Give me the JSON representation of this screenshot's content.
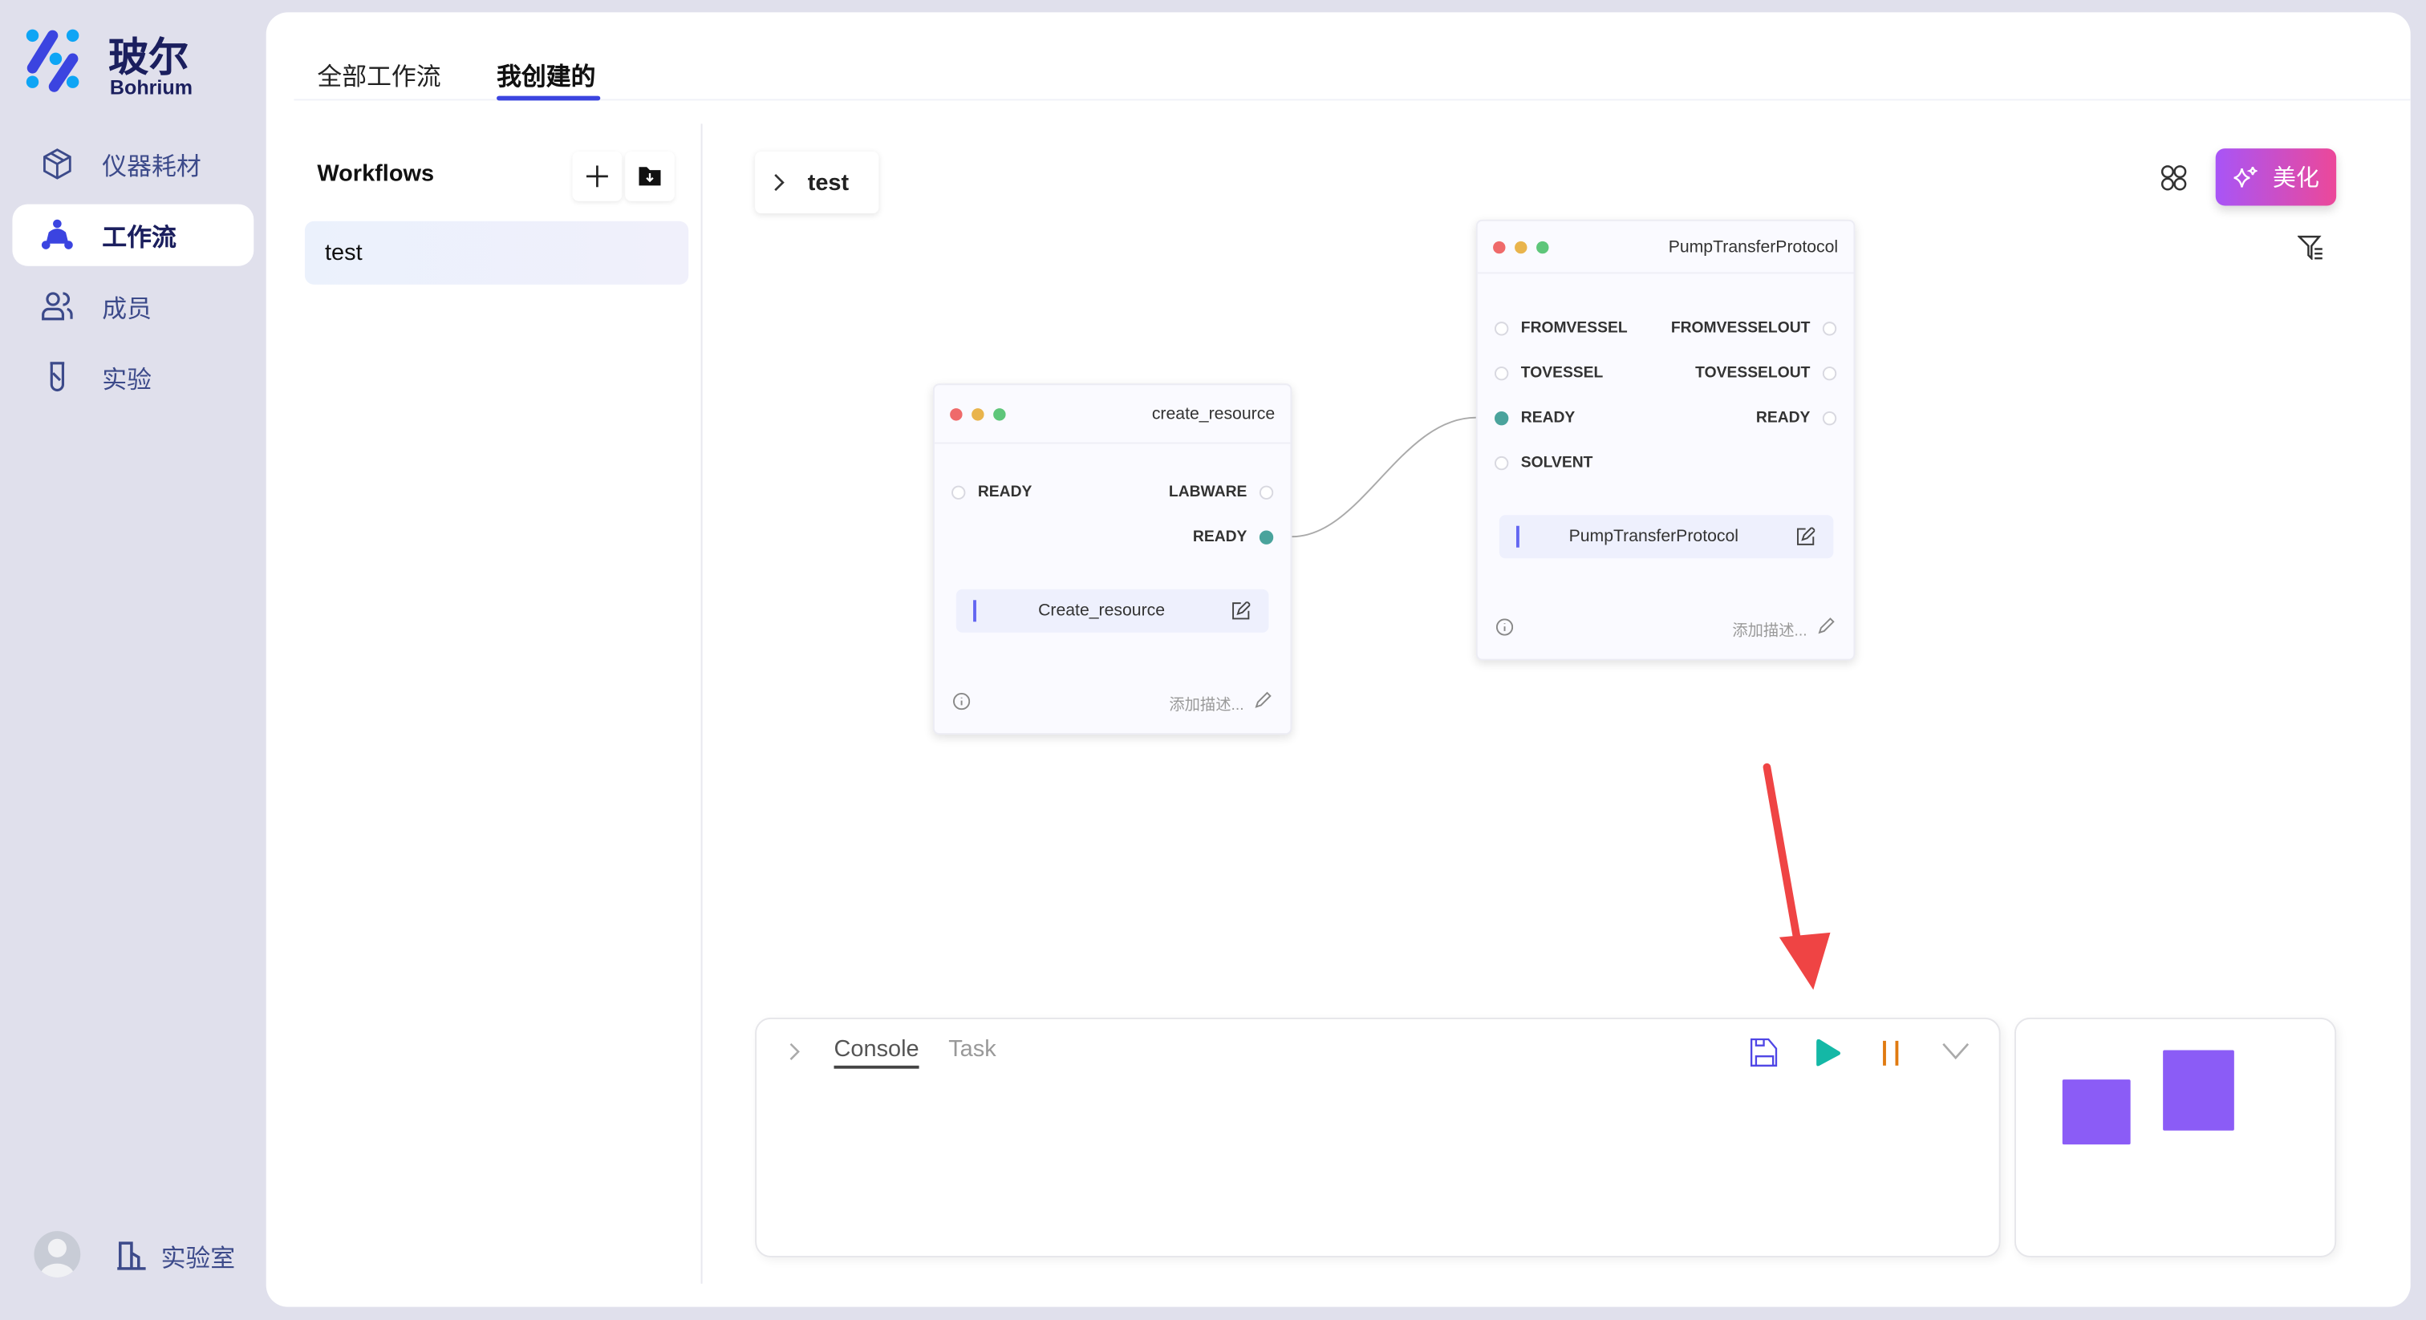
{
  "brand": {
    "name_cn": "玻尔",
    "name_en": "Bohrium"
  },
  "sidebar": {
    "items": [
      {
        "label": "仪器耗材",
        "icon": "cube-icon"
      },
      {
        "label": "工作流",
        "icon": "workflow-icon",
        "active": true
      },
      {
        "label": "成员",
        "icon": "users-icon"
      },
      {
        "label": "实验",
        "icon": "test-tube-icon"
      }
    ],
    "lab_label": "实验室"
  },
  "tabs": [
    {
      "label": "全部工作流"
    },
    {
      "label": "我创建的",
      "active": true
    }
  ],
  "workflows": {
    "title": "Workflows",
    "items": [
      "test"
    ]
  },
  "breadcrumb": "test",
  "toolbar": {
    "beautify_label": "美化"
  },
  "nodes": [
    {
      "title": "create_resource",
      "inputs": [
        "READY"
      ],
      "outputs": [
        "LABWARE",
        "READY"
      ],
      "label": "Create_resource",
      "desc": "添加描述..."
    },
    {
      "title": "PumpTransferProtocol",
      "inputs": [
        "FROMVESSEL",
        "TOVESSEL",
        "READY",
        "SOLVENT"
      ],
      "outputs": [
        "FROMVESSELOUT",
        "TOVESSELOUT",
        "READY"
      ],
      "label": "PumpTransferProtocol",
      "desc": "添加描述..."
    }
  ],
  "console": {
    "tabs": [
      "Console",
      "Task"
    ]
  },
  "colors": {
    "accent": "#3b44e0",
    "port_connected": "#4aa39c",
    "play": "#14b8a6",
    "pause": "#e07a10",
    "minimap": "#8b5cf6",
    "arrow": "#ef4444"
  }
}
